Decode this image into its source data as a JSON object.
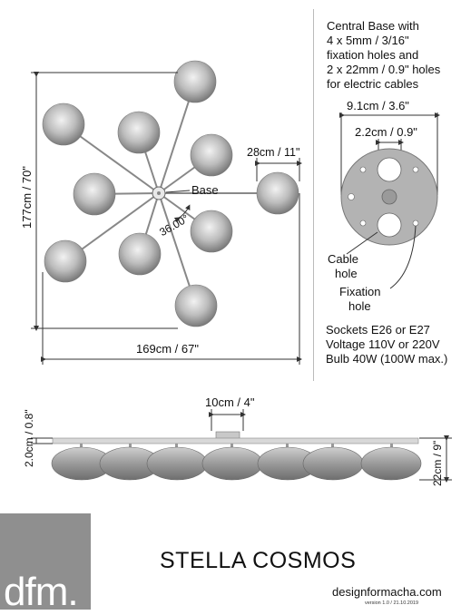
{
  "base_note": {
    "line1": "Central Base with",
    "line2": "4 x 5mm / 3/16\"",
    "line3": "fixation holes and",
    "line4": "2 x 22mm / 0.9\" holes",
    "line5": "for electric cables"
  },
  "top_view": {
    "height_label": "177cm / 70\"",
    "width_label": "169cm / 67\"",
    "globe_label": "28cm / 11\"",
    "base_label": "Base",
    "angle_label": "36.00°"
  },
  "base_plate": {
    "diameter_label": "9.1cm / 3.6\"",
    "hole_label": "2.2cm / 0.9\"",
    "cable_hole_line1": "Cable",
    "cable_hole_line2": "hole",
    "fixation_hole_line1": "Fixation",
    "fixation_hole_line2": "hole"
  },
  "specs": {
    "sockets": "Sockets E26 or E27",
    "voltage": "Voltage 110V or 220V",
    "bulb": "Bulb 40W (100W max.)"
  },
  "side_view": {
    "canopy_label": "10cm / 4\"",
    "thickness_label": "2.0cm / 0.8\"",
    "height_label": "22cm / 9\""
  },
  "footer": {
    "logo": "dfm.",
    "title": "STELLA COSMOS",
    "website": "designformacha.com",
    "version": "version 1.0 / 21.10.2019"
  }
}
